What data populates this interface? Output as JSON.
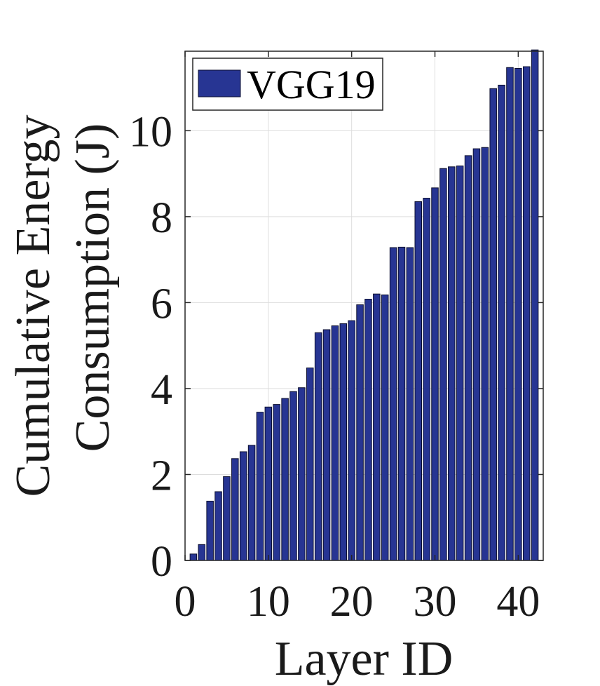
{
  "chart_data": {
    "type": "bar",
    "x": [
      1,
      2,
      3,
      4,
      5,
      6,
      7,
      8,
      9,
      10,
      11,
      12,
      13,
      14,
      15,
      16,
      17,
      18,
      19,
      20,
      21,
      22,
      23,
      24,
      25,
      26,
      27,
      28,
      29,
      30,
      31,
      32,
      33,
      34,
      35,
      36,
      37,
      38,
      39,
      40,
      41,
      42
    ],
    "series": [
      {
        "name": "VGG19",
        "values": [
          0.15,
          0.37,
          1.38,
          1.6,
          1.95,
          2.37,
          2.53,
          2.68,
          3.45,
          3.57,
          3.63,
          3.77,
          3.93,
          4.02,
          4.48,
          5.3,
          5.37,
          5.46,
          5.51,
          5.58,
          5.95,
          6.08,
          6.2,
          6.18,
          7.28,
          7.29,
          7.28,
          8.35,
          8.43,
          8.67,
          9.12,
          9.16,
          9.18,
          9.42,
          9.58,
          9.61,
          10.98,
          11.06,
          11.47,
          11.45,
          11.49,
          11.88
        ]
      }
    ],
    "xlabel": "Layer ID",
    "ylabel_lines": [
      "Cumulative Energy",
      "Consumption (J)"
    ],
    "xlim": [
      0,
      43
    ],
    "ylim": [
      0,
      11.85
    ],
    "xticks": [
      0,
      10,
      20,
      30,
      40
    ],
    "yticks": [
      0,
      2,
      4,
      6,
      8,
      10
    ],
    "grid": true,
    "legend_position": "top-left",
    "colors": {
      "bar": "#273593",
      "bar_edge": "#0d1030",
      "grid": "#dddddd"
    }
  }
}
